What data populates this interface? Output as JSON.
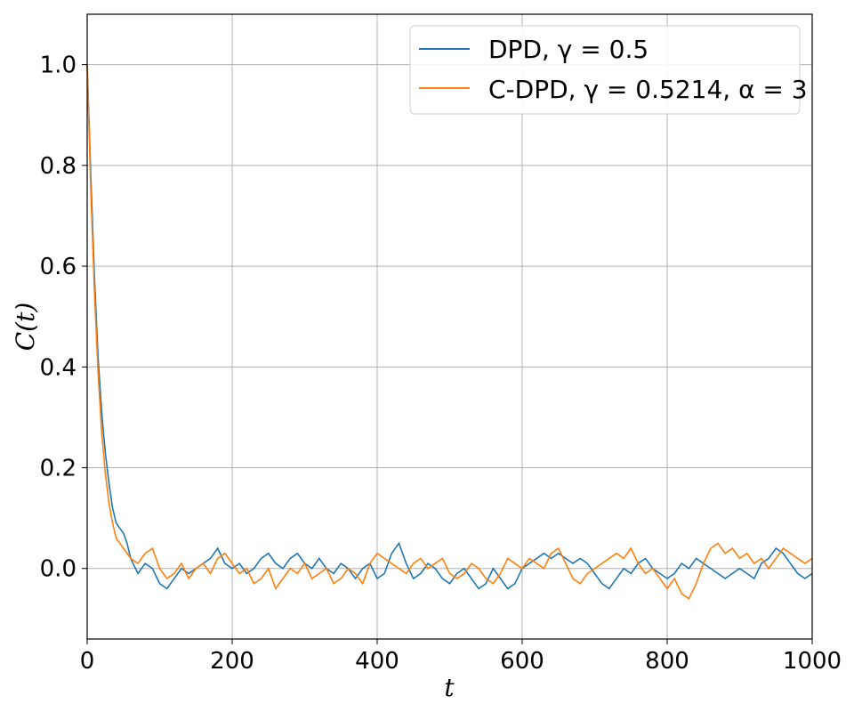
{
  "chart_data": {
    "type": "line",
    "title": "",
    "xlabel": "t",
    "ylabel": "C(t)",
    "xlim": [
      0,
      1000
    ],
    "ylim": [
      -0.14,
      1.1
    ],
    "grid": true,
    "legend_position": "top-right",
    "x_ticks": [
      0,
      200,
      400,
      600,
      800,
      1000
    ],
    "x_tick_labels": [
      "0",
      "200",
      "400",
      "600",
      "800",
      "1000"
    ],
    "y_ticks": [
      0.0,
      0.2,
      0.4,
      0.6,
      0.8,
      1.0
    ],
    "y_tick_labels": [
      "0.0",
      "0.2",
      "0.4",
      "0.6",
      "0.8",
      "1.0"
    ],
    "series": [
      {
        "name": "DPD, γ = 0.5",
        "color": "#1f77b4",
        "x": [
          0,
          5,
          10,
          15,
          20,
          25,
          30,
          35,
          40,
          45,
          50,
          55,
          60,
          70,
          80,
          90,
          100,
          110,
          120,
          130,
          140,
          150,
          160,
          170,
          180,
          190,
          200,
          210,
          220,
          230,
          240,
          250,
          260,
          270,
          280,
          290,
          300,
          310,
          320,
          330,
          340,
          350,
          360,
          370,
          380,
          390,
          400,
          410,
          420,
          430,
          440,
          450,
          460,
          470,
          480,
          490,
          500,
          510,
          520,
          530,
          540,
          550,
          560,
          570,
          580,
          590,
          600,
          610,
          620,
          630,
          640,
          650,
          660,
          670,
          680,
          690,
          700,
          710,
          720,
          730,
          740,
          750,
          760,
          770,
          780,
          790,
          800,
          810,
          820,
          830,
          840,
          850,
          860,
          870,
          880,
          890,
          900,
          910,
          920,
          930,
          940,
          950,
          960,
          970,
          980,
          990,
          1000
        ],
        "y": [
          1.0,
          0.78,
          0.58,
          0.42,
          0.31,
          0.23,
          0.17,
          0.12,
          0.09,
          0.08,
          0.07,
          0.05,
          0.02,
          -0.01,
          0.01,
          0.0,
          -0.03,
          -0.04,
          -0.02,
          0.0,
          -0.01,
          0.0,
          0.01,
          0.02,
          0.04,
          0.01,
          0.0,
          0.01,
          -0.01,
          0.0,
          0.02,
          0.03,
          0.01,
          0.0,
          0.02,
          0.03,
          0.01,
          0.0,
          0.02,
          0.0,
          -0.01,
          0.01,
          0.0,
          -0.02,
          0.0,
          0.01,
          -0.02,
          -0.01,
          0.03,
          0.05,
          0.01,
          -0.02,
          -0.01,
          0.01,
          0.0,
          -0.02,
          -0.03,
          -0.01,
          0.0,
          -0.02,
          -0.04,
          -0.03,
          0.0,
          -0.02,
          -0.04,
          -0.03,
          0.0,
          0.01,
          0.02,
          0.03,
          0.02,
          0.03,
          0.02,
          0.01,
          0.02,
          0.01,
          -0.01,
          -0.03,
          -0.04,
          -0.02,
          0.0,
          -0.01,
          0.01,
          0.02,
          0.0,
          -0.01,
          -0.02,
          -0.01,
          0.01,
          0.0,
          0.02,
          0.01,
          0.0,
          -0.01,
          -0.02,
          -0.01,
          0.0,
          -0.01,
          -0.02,
          0.01,
          0.02,
          0.04,
          0.03,
          0.01,
          -0.01,
          -0.02,
          -0.01
        ]
      },
      {
        "name": "C-DPD, γ = 0.5214, α = 3",
        "color": "#ff7f0e",
        "x": [
          0,
          5,
          10,
          15,
          20,
          25,
          30,
          35,
          40,
          45,
          50,
          55,
          60,
          70,
          80,
          90,
          100,
          110,
          120,
          130,
          140,
          150,
          160,
          170,
          180,
          190,
          200,
          210,
          220,
          230,
          240,
          250,
          260,
          270,
          280,
          290,
          300,
          310,
          320,
          330,
          340,
          350,
          360,
          370,
          380,
          390,
          400,
          410,
          420,
          430,
          440,
          450,
          460,
          470,
          480,
          490,
          500,
          510,
          520,
          530,
          540,
          550,
          560,
          570,
          580,
          590,
          600,
          610,
          620,
          630,
          640,
          650,
          660,
          670,
          680,
          690,
          700,
          710,
          720,
          730,
          740,
          750,
          760,
          770,
          780,
          790,
          800,
          810,
          820,
          830,
          840,
          850,
          860,
          870,
          880,
          890,
          900,
          910,
          920,
          930,
          940,
          950,
          960,
          970,
          980,
          990,
          1000
        ],
        "y": [
          1.0,
          0.75,
          0.55,
          0.39,
          0.27,
          0.19,
          0.13,
          0.09,
          0.06,
          0.05,
          0.04,
          0.03,
          0.02,
          0.01,
          0.03,
          0.04,
          0.0,
          -0.02,
          -0.01,
          0.01,
          -0.02,
          0.0,
          0.01,
          -0.01,
          0.02,
          0.03,
          0.01,
          -0.01,
          0.0,
          -0.03,
          -0.02,
          0.0,
          -0.04,
          -0.02,
          0.0,
          -0.01,
          0.01,
          -0.02,
          -0.01,
          0.0,
          -0.03,
          -0.02,
          0.0,
          -0.01,
          -0.03,
          0.01,
          0.03,
          0.02,
          0.01,
          0.0,
          -0.01,
          0.01,
          0.02,
          0.0,
          0.01,
          0.02,
          -0.01,
          -0.02,
          -0.01,
          0.01,
          0.0,
          -0.02,
          -0.03,
          -0.01,
          0.02,
          0.01,
          0.0,
          0.02,
          0.01,
          0.0,
          0.03,
          0.04,
          0.01,
          -0.02,
          -0.03,
          -0.01,
          0.0,
          0.01,
          0.02,
          0.03,
          0.02,
          0.04,
          0.01,
          -0.01,
          0.0,
          -0.02,
          -0.04,
          -0.02,
          -0.05,
          -0.06,
          -0.03,
          0.01,
          0.04,
          0.05,
          0.03,
          0.04,
          0.02,
          0.03,
          0.01,
          0.02,
          0.0,
          0.02,
          0.04,
          0.03,
          0.02,
          0.01,
          0.02
        ]
      }
    ]
  }
}
